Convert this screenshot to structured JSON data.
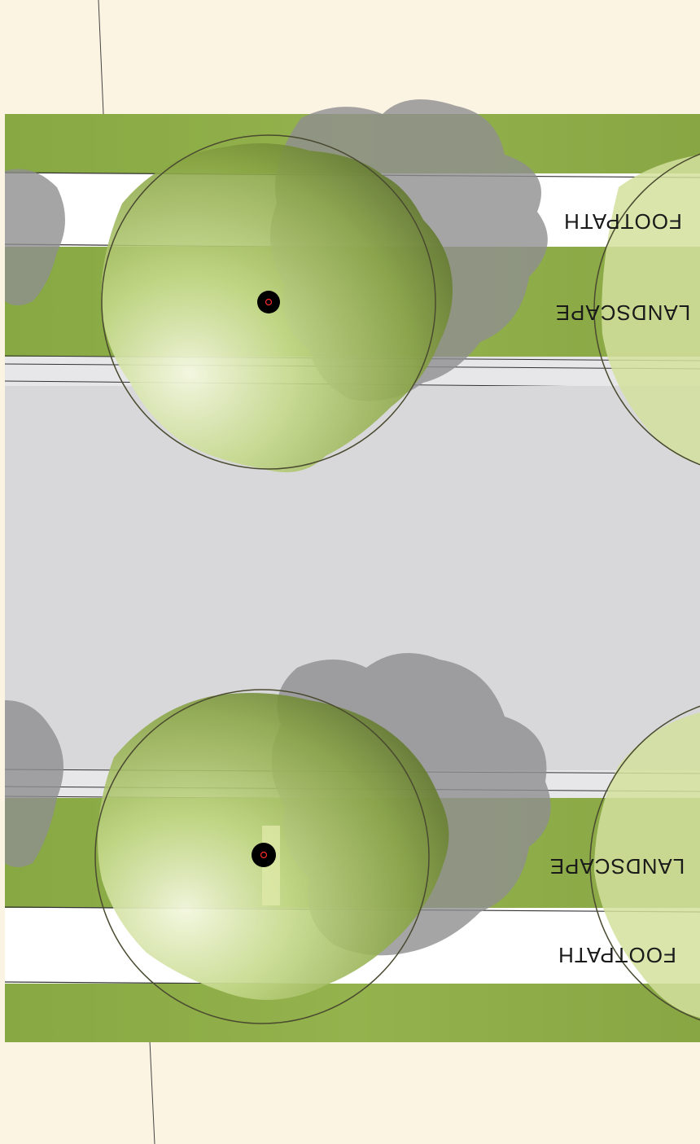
{
  "labels": {
    "footpath_top": "FOOTPATH",
    "landscape_top": "LANDSCAPE",
    "landscape_bottom": "LANDSCAPE",
    "footpath_bottom": "FOOTPATH"
  },
  "colors": {
    "background": "#fcf4e3",
    "grass": "#8fae47",
    "footpath": "#ffffff",
    "road": "#d8d8da",
    "shadow": "#8e8e90",
    "canopy_light": "#dfe9b5",
    "canopy_dark": "#6e8434",
    "trunk": "#000000",
    "trunk_mark": "#ff2a2a"
  },
  "icons": {
    "tree": "tree-canopy-icon",
    "trunk": "tree-trunk-icon"
  }
}
